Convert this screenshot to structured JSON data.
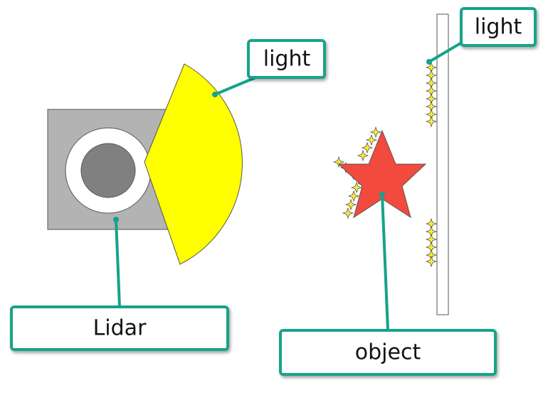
{
  "callouts": {
    "light_top": "light",
    "light_right": "light",
    "lidar": "Lidar",
    "object": "object"
  },
  "colors": {
    "callout_border": "#14a38a",
    "lidar_box": "#b3b3b3",
    "lidar_ring": "#ffffff",
    "lidar_lens": "#808080",
    "light_beam": "#ffff00",
    "object_star": "#f24a3d",
    "reflection_sparkle": "#ffee33",
    "wall": "#ffffff"
  }
}
